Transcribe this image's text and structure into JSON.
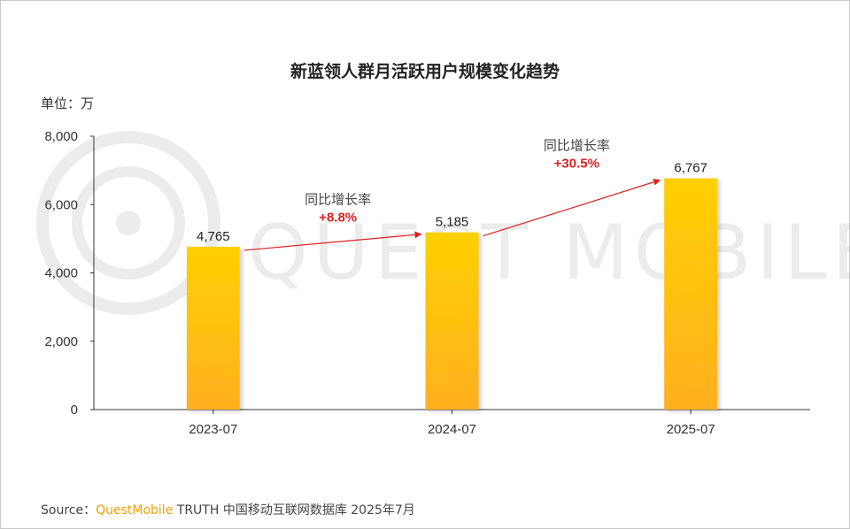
{
  "unit_label": "单位：万",
  "source": {
    "prefix": "Source：",
    "brand": "QuestMobile",
    "rest": " TRUTH 中国移动互联网数据库 2025年7月"
  },
  "watermark": "QUEST MOBILE",
  "colors": {
    "bar_top": "#ffd000",
    "bar_bottom": "#ffb020",
    "arrow": "#e02020",
    "growth_value": "#e02020"
  },
  "chart_data": {
    "type": "bar",
    "title": "新蓝领人群月活跃用户规模变化趋势",
    "categories": [
      "2023-07",
      "2024-07",
      "2025-07"
    ],
    "values": [
      4765,
      5185,
      6767
    ],
    "value_labels": [
      "4,765",
      "5,185",
      "6,767"
    ],
    "ylim": [
      0,
      8000
    ],
    "yticks": [
      0,
      2000,
      4000,
      6000,
      8000
    ],
    "ytick_labels": [
      "0",
      "2,000",
      "4,000",
      "6,000",
      "8,000"
    ],
    "grid": false,
    "annotations": [
      {
        "from": 0,
        "to": 1,
        "label": "同比增长率",
        "value": "+8.8%"
      },
      {
        "from": 1,
        "to": 2,
        "label": "同比增长率",
        "value": "+30.5%"
      }
    ]
  }
}
